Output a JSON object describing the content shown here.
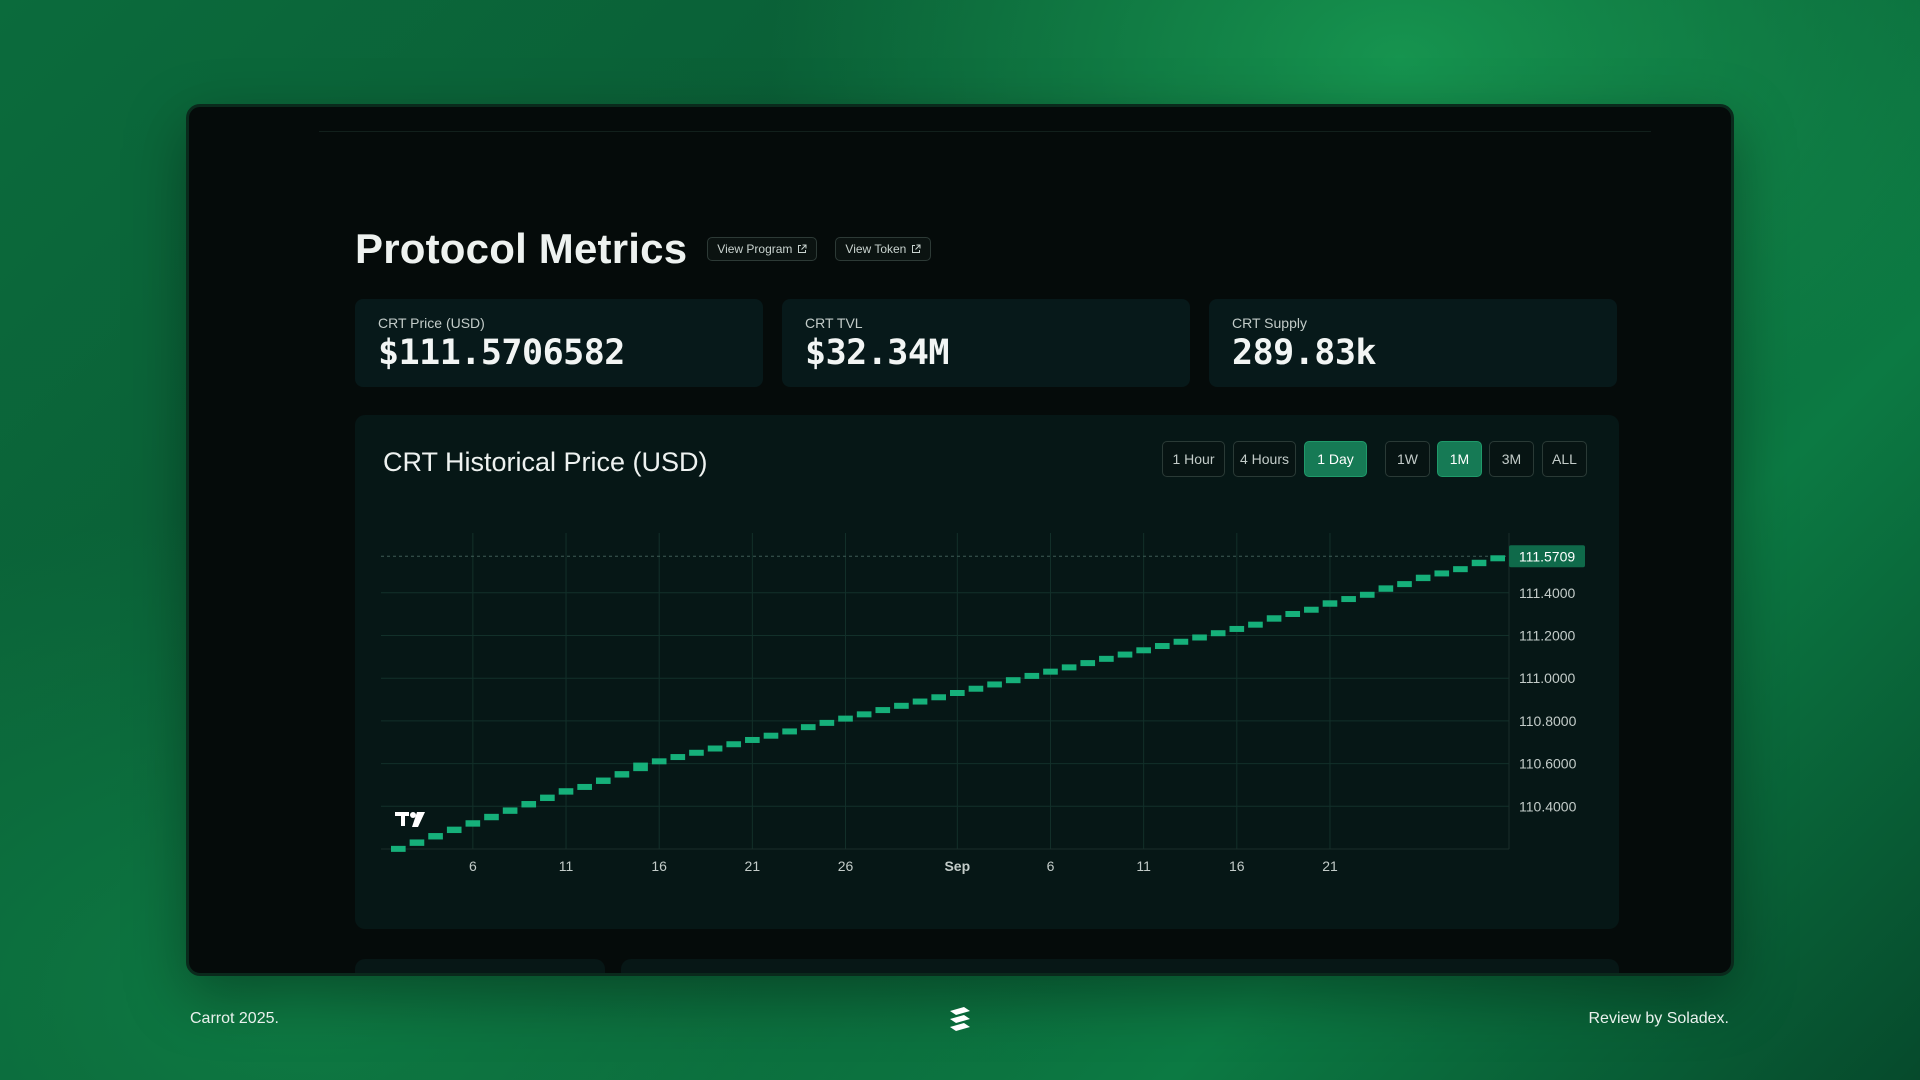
{
  "header": {
    "title": "Protocol Metrics",
    "view_program": "View Program",
    "view_token": "View Token"
  },
  "stats": [
    {
      "label": "CRT Price (USD)",
      "value": "$111.5706582"
    },
    {
      "label": "CRT TVL",
      "value": "$32.34M"
    },
    {
      "label": "CRT Supply",
      "value": "289.83k"
    }
  ],
  "chart": {
    "title": "CRT Historical Price (USD)",
    "timeframes": [
      {
        "label": "1 Hour",
        "active": false
      },
      {
        "label": "4 Hours",
        "active": false
      },
      {
        "label": "1 Day",
        "active": true
      },
      {
        "label": "1W",
        "active": false
      },
      {
        "label": "1M",
        "active": true
      },
      {
        "label": "3M",
        "active": false
      },
      {
        "label": "ALL",
        "active": false
      }
    ]
  },
  "chart_data": {
    "type": "candlestick",
    "y_ticks": [
      "111.4000",
      "111.2000",
      "111.0000",
      "110.8000",
      "110.6000",
      "110.4000"
    ],
    "y_tick_values": [
      111.4,
      111.2,
      111.0,
      110.8,
      110.6,
      110.4
    ],
    "ylim": [
      110.2,
      111.68
    ],
    "x_ticks": [
      "6",
      "11",
      "16",
      "21",
      "26",
      "Sep",
      "6",
      "11",
      "16",
      "21"
    ],
    "last_price_label": "111.5709",
    "last_price": 111.5709,
    "candle_color": "#16b07a",
    "grid": true,
    "x_start": "Aug 2",
    "x_end": "Sep 24",
    "candles_open": [
      110.19,
      110.21,
      110.24,
      110.27,
      110.3,
      110.33,
      110.36,
      110.39,
      110.42,
      110.45,
      110.48,
      110.5,
      110.53,
      110.56,
      110.6,
      110.62,
      110.64,
      110.66,
      110.68,
      110.7,
      110.72,
      110.74,
      110.76,
      110.78,
      110.8,
      110.82,
      110.84,
      110.86,
      110.88,
      110.9,
      110.92,
      110.94,
      110.96,
      110.98,
      111.0,
      111.02,
      111.04,
      111.06,
      111.08,
      111.1,
      111.12,
      111.14,
      111.16,
      111.18,
      111.2,
      111.22,
      111.24,
      111.26,
      111.29,
      111.31,
      111.33,
      111.36,
      111.38,
      111.4,
      111.43,
      111.45,
      111.48,
      111.5,
      111.52,
      111.55
    ],
    "candles_close": [
      110.21,
      110.24,
      110.27,
      110.3,
      110.33,
      110.36,
      110.39,
      110.42,
      110.45,
      110.48,
      110.5,
      110.53,
      110.56,
      110.6,
      110.62,
      110.64,
      110.66,
      110.68,
      110.7,
      110.72,
      110.74,
      110.76,
      110.78,
      110.8,
      110.82,
      110.84,
      110.86,
      110.88,
      110.9,
      110.92,
      110.94,
      110.96,
      110.98,
      111.0,
      111.02,
      111.04,
      111.06,
      111.08,
      111.1,
      111.12,
      111.14,
      111.16,
      111.18,
      111.2,
      111.22,
      111.24,
      111.26,
      111.29,
      111.31,
      111.33,
      111.36,
      111.38,
      111.4,
      111.43,
      111.45,
      111.48,
      111.5,
      111.52,
      111.55,
      111.5709
    ]
  },
  "footer": {
    "left": "Carrot 2025.",
    "right": "Review by Soladex."
  },
  "colors": {
    "accent": "#167a55",
    "candle": "#16b07a",
    "card": "#061716"
  }
}
